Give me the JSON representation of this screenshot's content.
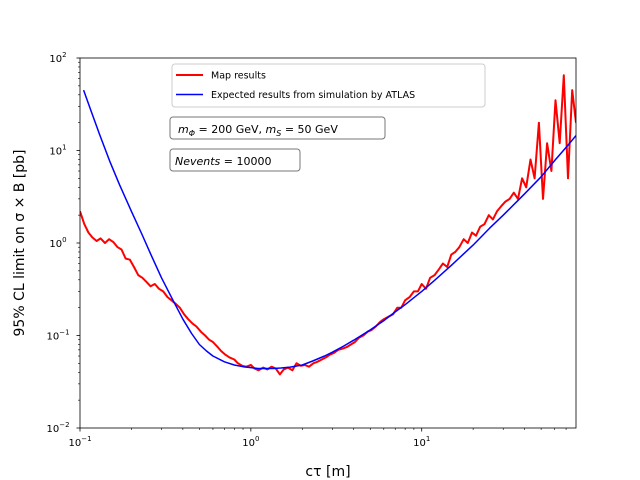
{
  "chart_data": {
    "type": "line",
    "xlabel": "cτ [m]",
    "ylabel": "95% CL limit on σ × B [pb]",
    "xscale": "log",
    "yscale": "log",
    "xlim": [
      0.1,
      80
    ],
    "ylim": [
      0.01,
      100
    ],
    "grid": false,
    "legend_position": "top-center",
    "x_ticks": [
      {
        "value": 0.1,
        "base": "10",
        "exp": "−1"
      },
      {
        "value": 1,
        "base": "10",
        "exp": "0"
      },
      {
        "value": 10,
        "base": "10",
        "exp": "1"
      }
    ],
    "y_ticks": [
      {
        "value": 0.01,
        "base": "10",
        "exp": "−2"
      },
      {
        "value": 0.1,
        "base": "10",
        "exp": "−1"
      },
      {
        "value": 1,
        "base": "10",
        "exp": "0"
      },
      {
        "value": 10,
        "base": "10",
        "exp": "1"
      },
      {
        "value": 100,
        "base": "10",
        "exp": "2"
      }
    ],
    "annotations": {
      "mass_box": {
        "prefix": "m",
        "sub1": "Φ",
        "mid": " = 200 GeV, ",
        "m2": "m",
        "sub2": "S",
        "suffix": " = 50 GeV"
      },
      "events_box": {
        "var": "Nevents",
        "suffix": " = 10000"
      }
    },
    "series": [
      {
        "name": "Map results",
        "color": "#ff0000",
        "x": [
          0.1,
          0.106,
          0.112,
          0.118,
          0.125,
          0.132,
          0.14,
          0.148,
          0.157,
          0.166,
          0.175,
          0.185,
          0.196,
          0.207,
          0.219,
          0.232,
          0.245,
          0.259,
          0.274,
          0.29,
          0.307,
          0.325,
          0.343,
          0.363,
          0.384,
          0.406,
          0.43,
          0.455,
          0.48,
          0.51,
          0.54,
          0.57,
          0.6,
          0.64,
          0.67,
          0.71,
          0.75,
          0.8,
          0.84,
          0.89,
          0.94,
          1.0,
          1.05,
          1.11,
          1.18,
          1.25,
          1.32,
          1.4,
          1.48,
          1.56,
          1.65,
          1.75,
          1.85,
          1.96,
          2.07,
          2.19,
          2.32,
          2.45,
          2.6,
          2.75,
          2.9,
          3.07,
          3.25,
          3.44,
          3.64,
          3.85,
          4.07,
          4.3,
          4.55,
          4.82,
          5.1,
          5.39,
          5.7,
          6.0,
          6.4,
          6.8,
          7.2,
          7.6,
          8.0,
          8.5,
          9.0,
          9.5,
          10.0,
          10.6,
          11.2,
          11.9,
          12.6,
          13.3,
          14.1,
          14.9,
          15.7,
          16.6,
          17.6,
          18.6,
          19.7,
          20.8,
          22.0,
          23.3,
          24.7,
          26.1,
          27.6,
          29.2,
          30.9,
          32.7,
          34.6,
          36.6,
          38.7,
          40.9,
          43.3,
          45.8,
          48.5,
          51.3,
          54.2,
          57.4,
          60.7,
          64.2,
          67.9,
          71.8,
          76.0,
          80.0
        ],
        "y": [
          2.2,
          1.6,
          1.3,
          1.15,
          1.05,
          1.12,
          1.0,
          1.1,
          1.02,
          0.9,
          0.85,
          0.68,
          0.66,
          0.55,
          0.45,
          0.42,
          0.38,
          0.34,
          0.36,
          0.32,
          0.3,
          0.26,
          0.24,
          0.22,
          0.2,
          0.17,
          0.15,
          0.135,
          0.125,
          0.11,
          0.1,
          0.09,
          0.085,
          0.075,
          0.068,
          0.062,
          0.058,
          0.055,
          0.05,
          0.047,
          0.046,
          0.048,
          0.044,
          0.042,
          0.045,
          0.043,
          0.046,
          0.044,
          0.038,
          0.043,
          0.045,
          0.042,
          0.05,
          0.047,
          0.048,
          0.046,
          0.05,
          0.052,
          0.055,
          0.058,
          0.062,
          0.065,
          0.07,
          0.072,
          0.075,
          0.08,
          0.085,
          0.095,
          0.1,
          0.11,
          0.115,
          0.125,
          0.14,
          0.15,
          0.16,
          0.17,
          0.2,
          0.2,
          0.24,
          0.26,
          0.3,
          0.3,
          0.36,
          0.32,
          0.42,
          0.45,
          0.52,
          0.6,
          0.55,
          0.75,
          0.8,
          0.9,
          1.1,
          1.0,
          1.3,
          1.2,
          1.5,
          1.6,
          2.0,
          1.8,
          2.2,
          2.5,
          2.8,
          3.0,
          3.5,
          3.0,
          5.0,
          4.0,
          8.0,
          5.0,
          20.0,
          3.0,
          12.0,
          6.0,
          35.0,
          12.0,
          65.0,
          5.0,
          45.0,
          20.0
        ]
      },
      {
        "name": "Expected results from simulation by ATLAS",
        "color": "#0000ff",
        "x": [
          0.105,
          0.115,
          0.13,
          0.15,
          0.17,
          0.2,
          0.23,
          0.26,
          0.3,
          0.35,
          0.4,
          0.45,
          0.5,
          0.55,
          0.6,
          0.7,
          0.8,
          0.9,
          1.0,
          1.1,
          1.2,
          1.35,
          1.5,
          1.7,
          2.0,
          2.3,
          2.7,
          3.0,
          3.5,
          4.0,
          5.0,
          6.0,
          7.0,
          8.0,
          10.0,
          12.0,
          15.0,
          20.0,
          25.0,
          30.0,
          40.0,
          50.0,
          60.0,
          70.0,
          80.0
        ],
        "y": [
          45.0,
          28.0,
          15.0,
          7.5,
          4.3,
          2.2,
          1.25,
          0.75,
          0.42,
          0.24,
          0.15,
          0.105,
          0.08,
          0.068,
          0.06,
          0.052,
          0.048,
          0.046,
          0.045,
          0.044,
          0.044,
          0.044,
          0.0445,
          0.0455,
          0.048,
          0.053,
          0.06,
          0.066,
          0.077,
          0.089,
          0.115,
          0.145,
          0.18,
          0.215,
          0.3,
          0.4,
          0.58,
          0.95,
          1.45,
          2.0,
          3.4,
          5.2,
          7.8,
          10.8,
          14.5
        ]
      }
    ]
  }
}
